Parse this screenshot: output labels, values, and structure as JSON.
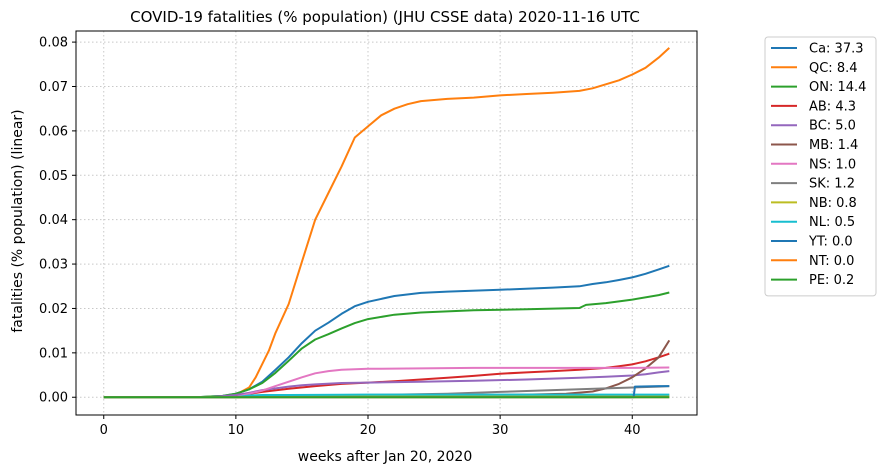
{
  "chart_data": {
    "type": "line",
    "title": "COVID-19 fatalities (% population) (JHU CSSE data) 2020-11-16 UTC",
    "xlabel": "weeks after Jan 20, 2020",
    "ylabel": "fatalities (% population) (linear)",
    "xlim": [
      -2.1,
      44.9
    ],
    "ylim": [
      -0.004,
      0.0825
    ],
    "xticks": [
      0,
      10,
      20,
      30,
      40
    ],
    "xtick_labels": [
      "0",
      "10",
      "20",
      "30",
      "40"
    ],
    "yticks": [
      0.0,
      0.01,
      0.02,
      0.03,
      0.04,
      0.05,
      0.06,
      0.07,
      0.08
    ],
    "ytick_labels": [
      "0.00",
      "0.01",
      "0.02",
      "0.03",
      "0.04",
      "0.05",
      "0.06",
      "0.07",
      "0.08"
    ],
    "grid": true,
    "legend_position": "outside-right",
    "series": [
      {
        "name": "Ca: 37.3",
        "color": "#1f77b4",
        "points": [
          [
            0,
            0
          ],
          [
            7,
            0
          ],
          [
            9,
            0.0003
          ],
          [
            10,
            0.0008
          ],
          [
            11,
            0.0018
          ],
          [
            12,
            0.0035
          ],
          [
            13,
            0.0062
          ],
          [
            14,
            0.009
          ],
          [
            15,
            0.0122
          ],
          [
            16,
            0.015
          ],
          [
            17,
            0.0168
          ],
          [
            18,
            0.0188
          ],
          [
            19,
            0.0205
          ],
          [
            20,
            0.0215
          ],
          [
            22,
            0.0228
          ],
          [
            24,
            0.0235
          ],
          [
            26,
            0.0238
          ],
          [
            30,
            0.0242
          ],
          [
            34,
            0.0247
          ],
          [
            36,
            0.025
          ],
          [
            37,
            0.0255
          ],
          [
            38,
            0.0259
          ],
          [
            39,
            0.0264
          ],
          [
            40,
            0.027
          ],
          [
            41,
            0.0278
          ],
          [
            42,
            0.0288
          ],
          [
            42.8,
            0.0296
          ]
        ]
      },
      {
        "name": "QC: 8.4",
        "color": "#ff7f0e",
        "points": [
          [
            0,
            0
          ],
          [
            7,
            0
          ],
          [
            9,
            0.0002
          ],
          [
            10,
            0.0006
          ],
          [
            11,
            0.0022
          ],
          [
            11.5,
            0.0045
          ],
          [
            12,
            0.0075
          ],
          [
            12.5,
            0.0105
          ],
          [
            13,
            0.0145
          ],
          [
            14,
            0.021
          ],
          [
            15,
            0.0305
          ],
          [
            16,
            0.04
          ],
          [
            17,
            0.046
          ],
          [
            18,
            0.052
          ],
          [
            19,
            0.0585
          ],
          [
            20,
            0.061
          ],
          [
            21,
            0.0635
          ],
          [
            22,
            0.065
          ],
          [
            23,
            0.066
          ],
          [
            24,
            0.0667
          ],
          [
            26,
            0.0672
          ],
          [
            28,
            0.0675
          ],
          [
            30,
            0.068
          ],
          [
            32,
            0.0683
          ],
          [
            34,
            0.0686
          ],
          [
            36,
            0.069
          ],
          [
            37,
            0.0696
          ],
          [
            38,
            0.0705
          ],
          [
            39,
            0.0714
          ],
          [
            40,
            0.0727
          ],
          [
            41,
            0.0742
          ],
          [
            42,
            0.0765
          ],
          [
            42.8,
            0.0787
          ]
        ]
      },
      {
        "name": "ON: 14.4",
        "color": "#2ca02c",
        "points": [
          [
            0,
            0
          ],
          [
            7,
            0
          ],
          [
            9,
            0.0003
          ],
          [
            10,
            0.0008
          ],
          [
            11,
            0.0018
          ],
          [
            12,
            0.0032
          ],
          [
            13,
            0.0055
          ],
          [
            14,
            0.0082
          ],
          [
            15,
            0.011
          ],
          [
            16,
            0.013
          ],
          [
            17,
            0.0142
          ],
          [
            18,
            0.0155
          ],
          [
            19,
            0.0167
          ],
          [
            20,
            0.0176
          ],
          [
            22,
            0.0186
          ],
          [
            24,
            0.0191
          ],
          [
            28,
            0.0196
          ],
          [
            32,
            0.0198
          ],
          [
            36,
            0.0201
          ],
          [
            36.5,
            0.0208
          ],
          [
            38,
            0.0212
          ],
          [
            40,
            0.022
          ],
          [
            42,
            0.023
          ],
          [
            42.8,
            0.0236
          ]
        ]
      },
      {
        "name": "AB: 4.3",
        "color": "#d62728",
        "points": [
          [
            0,
            0
          ],
          [
            8,
            0
          ],
          [
            10,
            0.0003
          ],
          [
            12,
            0.0012
          ],
          [
            14,
            0.0019
          ],
          [
            16,
            0.0025
          ],
          [
            18,
            0.003
          ],
          [
            20,
            0.0033
          ],
          [
            22,
            0.0036
          ],
          [
            24,
            0.004
          ],
          [
            26,
            0.0044
          ],
          [
            28,
            0.0048
          ],
          [
            30,
            0.0053
          ],
          [
            32,
            0.0056
          ],
          [
            34,
            0.0059
          ],
          [
            36,
            0.0062
          ],
          [
            38,
            0.0066
          ],
          [
            39,
            0.007
          ],
          [
            40,
            0.0074
          ],
          [
            41,
            0.0081
          ],
          [
            42,
            0.009
          ],
          [
            42.8,
            0.0098
          ]
        ]
      },
      {
        "name": "BC: 5.0",
        "color": "#9467bd",
        "points": [
          [
            0,
            0
          ],
          [
            8,
            0
          ],
          [
            10,
            0.0005
          ],
          [
            11,
            0.001
          ],
          [
            12,
            0.0016
          ],
          [
            13,
            0.002
          ],
          [
            14,
            0.0024
          ],
          [
            15,
            0.0027
          ],
          [
            16,
            0.0029
          ],
          [
            18,
            0.0032
          ],
          [
            20,
            0.0033
          ],
          [
            24,
            0.0035
          ],
          [
            28,
            0.0037
          ],
          [
            32,
            0.004
          ],
          [
            36,
            0.0044
          ],
          [
            38,
            0.0046
          ],
          [
            40,
            0.0049
          ],
          [
            41,
            0.0052
          ],
          [
            42,
            0.0056
          ],
          [
            42.8,
            0.0059
          ]
        ]
      },
      {
        "name": "MB: 1.4",
        "color": "#8c564b",
        "points": [
          [
            0,
            0
          ],
          [
            10,
            0
          ],
          [
            12,
            0.0002
          ],
          [
            16,
            0.0003
          ],
          [
            20,
            0.0004
          ],
          [
            24,
            0.0004
          ],
          [
            28,
            0.0005
          ],
          [
            32,
            0.0006
          ],
          [
            35,
            0.0008
          ],
          [
            37,
            0.0013
          ],
          [
            38,
            0.002
          ],
          [
            39,
            0.003
          ],
          [
            40,
            0.0045
          ],
          [
            41,
            0.0065
          ],
          [
            42,
            0.009
          ],
          [
            42.8,
            0.0128
          ]
        ]
      },
      {
        "name": "NS: 1.0",
        "color": "#e377c2",
        "points": [
          [
            0,
            0
          ],
          [
            10,
            0
          ],
          [
            11,
            0.0008
          ],
          [
            12,
            0.0015
          ],
          [
            13,
            0.0025
          ],
          [
            14,
            0.0035
          ],
          [
            15,
            0.0045
          ],
          [
            16,
            0.0054
          ],
          [
            17,
            0.0059
          ],
          [
            18,
            0.0062
          ],
          [
            20,
            0.0064
          ],
          [
            24,
            0.0065
          ],
          [
            28,
            0.0066
          ],
          [
            32,
            0.0066
          ],
          [
            36,
            0.0066
          ],
          [
            40,
            0.0066
          ],
          [
            42.8,
            0.0067
          ]
        ]
      },
      {
        "name": "SK: 1.2",
        "color": "#7f7f7f",
        "points": [
          [
            0,
            0
          ],
          [
            10,
            0
          ],
          [
            12,
            0.0003
          ],
          [
            14,
            0.0004
          ],
          [
            18,
            0.0005
          ],
          [
            22,
            0.0006
          ],
          [
            26,
            0.0008
          ],
          [
            30,
            0.0012
          ],
          [
            34,
            0.0016
          ],
          [
            36,
            0.0018
          ],
          [
            38,
            0.002
          ],
          [
            40,
            0.0022
          ],
          [
            42,
            0.0024
          ],
          [
            42.8,
            0.0025
          ]
        ]
      },
      {
        "name": "NB: 0.8",
        "color": "#bcbd22",
        "points": [
          [
            0,
            0
          ],
          [
            11,
            0
          ],
          [
            12,
            0.0002
          ],
          [
            22,
            0.0002
          ],
          [
            30,
            0.0002
          ],
          [
            36,
            0.0002
          ],
          [
            38,
            0.0003
          ],
          [
            40,
            0.0004
          ],
          [
            42,
            0.0004
          ],
          [
            42.8,
            0.0004
          ]
        ]
      },
      {
        "name": "NL: 0.5",
        "color": "#17becf",
        "points": [
          [
            0,
            0
          ],
          [
            10,
            0
          ],
          [
            11,
            0.0004
          ],
          [
            12,
            0.0005
          ],
          [
            14,
            0.0005
          ],
          [
            20,
            0.0006
          ],
          [
            30,
            0.0006
          ],
          [
            40,
            0.0006
          ],
          [
            42.8,
            0.0006
          ]
        ]
      },
      {
        "name": "YT: 0.0",
        "color": "#1f77b4",
        "points": [
          [
            0,
            0
          ],
          [
            40.1,
            0
          ],
          [
            40.2,
            0.0024
          ],
          [
            42,
            0.0025
          ],
          [
            42.8,
            0.0025
          ]
        ]
      },
      {
        "name": "NT: 0.0",
        "color": "#ff7f0e",
        "points": [
          [
            0,
            0
          ],
          [
            42.8,
            0
          ]
        ]
      },
      {
        "name": "PE: 0.2",
        "color": "#2ca02c",
        "points": [
          [
            0,
            0
          ],
          [
            42.8,
            0
          ]
        ]
      }
    ]
  }
}
